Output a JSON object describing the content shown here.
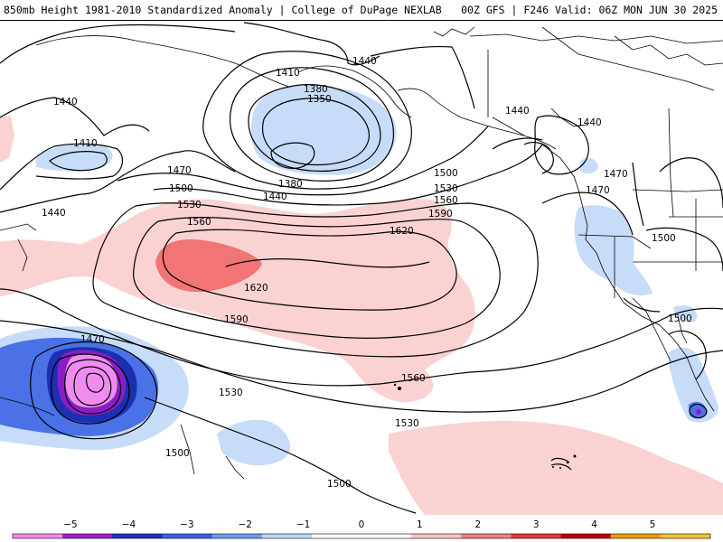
{
  "header": {
    "title_left": "850mb Height 1981-2010 Standardized Anomaly | College of DuPage NEXLAB",
    "title_right": "00Z GFS | F246 Valid: 06Z MON JUN 30 2025"
  },
  "contour_labels": {
    "h1410_a": "1410",
    "h1440_a": "1440",
    "h1380_a": "1380",
    "h1350": "1350",
    "h1440_b": "1440",
    "h1440_c": "1440",
    "h1440_d": "1440",
    "h1410_b": "1410",
    "h1440_e": "1440",
    "h1470_a": "1470",
    "h1500_a": "1500",
    "h1380_b": "1380",
    "h1440_f": "1440",
    "h1500_b": "1500",
    "h1530_a": "1530",
    "h1560_a": "1560",
    "h1590_a": "1590",
    "h1530_b": "1530",
    "h1560_b": "1560",
    "h1620_a": "1620",
    "h1620_b": "1620",
    "h1590_b": "1590",
    "h1470_b": "1470",
    "h1470_c": "1470",
    "h1500_c": "1500",
    "h1500_d": "1500",
    "h1470_d": "1470",
    "h1530_c": "1530",
    "h1560_c": "1560",
    "h1530_d": "1530",
    "h1500_e": "1500",
    "h1500_f": "1500"
  },
  "colorbar": {
    "ticks": [
      "−5",
      "−4",
      "−3",
      "−2",
      "−1",
      "0",
      "1",
      "2",
      "3",
      "4",
      "5"
    ],
    "colors": [
      "#f08cf0",
      "#a020c8",
      "#1c34b8",
      "#3a62e8",
      "#6e9cf0",
      "#bcd8fa",
      "#ffffff",
      "#ffffff",
      "#fbc6c6",
      "#f08080",
      "#e83838",
      "#c00000",
      "#e8a000",
      "#f5c23a"
    ]
  },
  "colors": {
    "anom_pos_1": "#fbd2d2",
    "anom_pos_2": "#f27474",
    "anom_neg_1": "#c6dcf8",
    "anom_neg_2": "#4a72e6",
    "anom_neg_3": "#1c2fb0",
    "anom_neg_4": "#8a1ec4",
    "anom_neg_5": "#f08cf0"
  }
}
